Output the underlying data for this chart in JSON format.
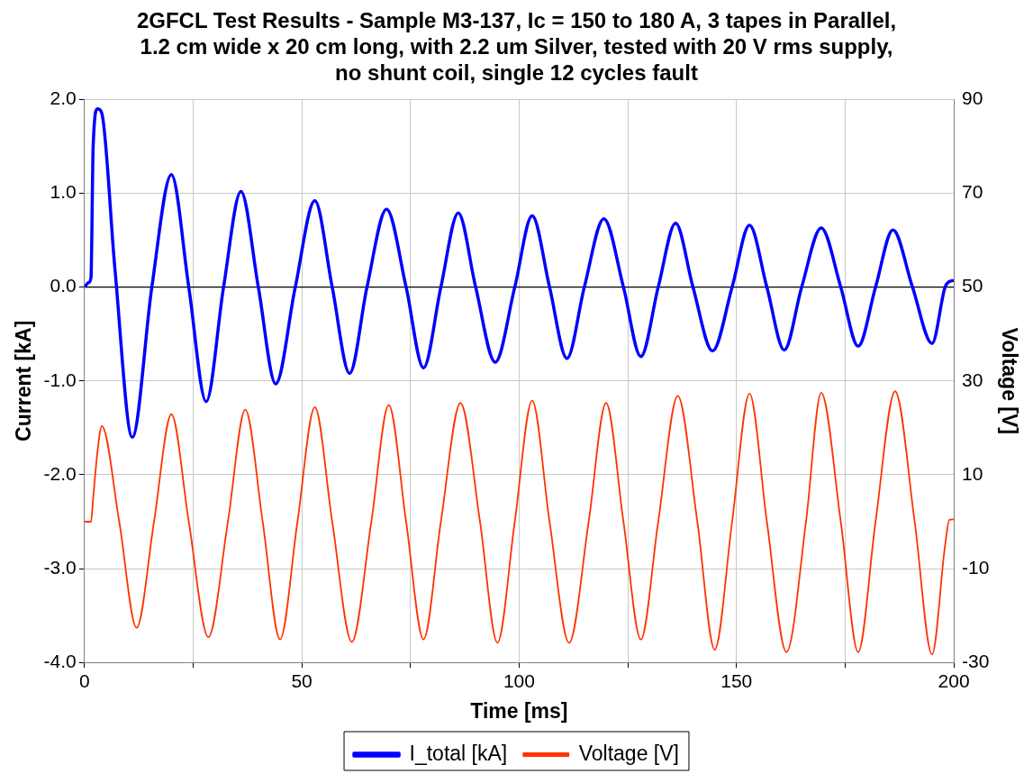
{
  "chart_data": {
    "type": "line",
    "title": "2GFCL Test Results - Sample M3-137, Ic = 150 to 180 A, 3 tapes in Parallel, 1.2 cm wide x 20 cm long, with 2.2 um Silver, tested with 20 V rms supply, no shunt coil, single 12 cycles fault",
    "xlabel": "Time [ms]",
    "ylabel": "Current [kA]",
    "y2label": "Voltage [V]",
    "xlim": [
      0,
      200
    ],
    "xticks": [
      0,
      {
        "value": 25,
        "label": null
      },
      50,
      {
        "value": 75,
        "label": null
      },
      100,
      {
        "value": 125,
        "label": null
      },
      150,
      {
        "value": 175,
        "label": null
      },
      200
    ],
    "ylim": [
      -4,
      2
    ],
    "yticks": [
      {
        "value": -4,
        "label": "-4.0"
      },
      {
        "value": -3,
        "label": "-3.0"
      },
      {
        "value": -2,
        "label": "-2.0"
      },
      {
        "value": -1,
        "label": "-1.0"
      },
      {
        "value": 0,
        "label": "0.0"
      },
      {
        "value": 1,
        "label": "1.0"
      },
      {
        "value": 2,
        "label": "2.0"
      }
    ],
    "y2lim": [
      -30,
      90
    ],
    "y2ticks": [
      -30,
      -10,
      10,
      30,
      50,
      70,
      90
    ],
    "grid": true,
    "legend": "bottom",
    "marker": "none",
    "line_style": "solid",
    "ref_lines": [
      {
        "axis": "y",
        "value": 0,
        "color": "#000000"
      }
    ],
    "series": [
      {
        "name": "I_total [kA]",
        "color": "#0000ff",
        "x": [
          0,
          1,
          1.5,
          2,
          3,
          4,
          7,
          11,
          15.5,
          20,
          24,
          28,
          32,
          36,
          40,
          44,
          48.5,
          53,
          57,
          61,
          65,
          69.5,
          74,
          78,
          82,
          86,
          90,
          94.5,
          99,
          103,
          107,
          111,
          115,
          119.5,
          124,
          128,
          132,
          136,
          140,
          144.5,
          149,
          153,
          157,
          161,
          165,
          169.5,
          174,
          178,
          182,
          186,
          190.5,
          195,
          198,
          199,
          200
        ],
        "values": [
          0,
          0.05,
          0.1,
          1.5,
          1.9,
          1.85,
          0.2,
          -1.6,
          0,
          1.2,
          0,
          -1.22,
          0,
          1.02,
          0,
          -1.03,
          0,
          0.92,
          0,
          -0.92,
          0,
          0.83,
          0,
          -0.86,
          0,
          0.79,
          0,
          -0.8,
          0,
          0.76,
          0,
          -0.76,
          0,
          0.73,
          0,
          -0.74,
          0,
          0.68,
          0,
          -0.68,
          0,
          0.66,
          0,
          -0.67,
          0,
          0.63,
          0,
          -0.63,
          0,
          0.61,
          0,
          -0.6,
          0,
          0.06,
          0.07
        ]
      },
      {
        "name": "Voltage [V]",
        "color": "#ff3300",
        "axis": "y2",
        "x": [
          0,
          1.5,
          2,
          3,
          4,
          8,
          12,
          16,
          20,
          24,
          28.5,
          33,
          37,
          41,
          45,
          49,
          53,
          57,
          61.5,
          66,
          70,
          74,
          78,
          82,
          86.5,
          91,
          95,
          99,
          103,
          107,
          111.5,
          116,
          120,
          124,
          128,
          132,
          136.5,
          141,
          145,
          149,
          153,
          157,
          161.5,
          166,
          169.5,
          174,
          178,
          182,
          186.5,
          191,
          195,
          198,
          199,
          200
        ],
        "values": [
          0,
          0,
          5,
          15,
          20.4,
          0,
          -22.6,
          0,
          22.9,
          0,
          -24.6,
          0,
          23.9,
          0,
          -25.1,
          0,
          24.4,
          0,
          -25.6,
          0,
          24.9,
          0,
          -25.1,
          0,
          25.3,
          0,
          -25.8,
          0,
          25.8,
          0,
          -25.8,
          0,
          25.3,
          0,
          -25.1,
          0,
          26.8,
          0,
          -27.3,
          0,
          27.3,
          0,
          -27.8,
          0,
          27.5,
          0,
          -27.8,
          0,
          27.8,
          0,
          -28.3,
          -5,
          0.4,
          0.5
        ]
      }
    ]
  }
}
